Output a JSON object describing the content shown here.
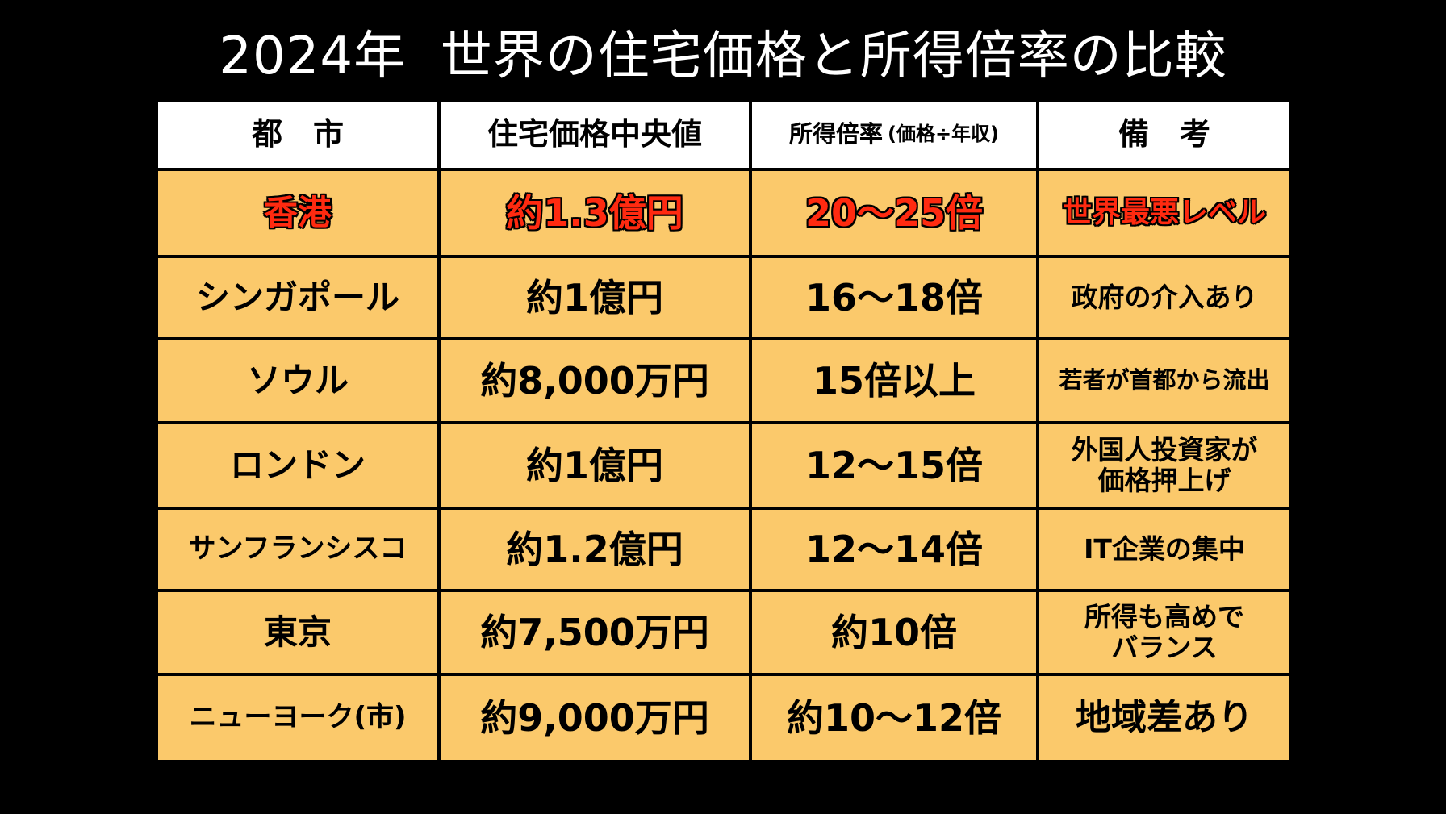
{
  "title": "2024年  世界の住宅価格と所得倍率の比較",
  "headers": {
    "city": "都　市",
    "price": "住宅価格中央値",
    "ratio": "所得倍率",
    "ratio_sub": "(価格÷年収)",
    "note": "備　考"
  },
  "rows": [
    {
      "city": "香港",
      "price": "約1.3億円",
      "ratio": "20〜25倍",
      "note": "世界最悪レベル"
    },
    {
      "city": "シンガポール",
      "price": "約1億円",
      "ratio": "16〜18倍",
      "note": "政府の介入あり"
    },
    {
      "city": "ソウル",
      "price": "約8,000万円",
      "ratio": "15倍以上",
      "note": "若者が首都から流出"
    },
    {
      "city": "ロンドン",
      "price": "約1億円",
      "ratio": "12〜15倍",
      "note": "外国人投資家が\n価格押上げ"
    },
    {
      "city": "サンフランシスコ",
      "price": "約1.2億円",
      "ratio": "12〜14倍",
      "note": "IT企業の集中"
    },
    {
      "city": "東京",
      "price": "約7,500万円",
      "ratio": "約10倍",
      "note": "所得も高めで\nバランス"
    },
    {
      "city": "ニューヨーク(市)",
      "price": "約9,000万円",
      "ratio": "約10〜12倍",
      "note": "地域差あり"
    }
  ],
  "colors": {
    "background": "#000000",
    "header_fill": "#ffffff",
    "row_fill": "#fbc96b",
    "highlight_text": "#ff2a10"
  }
}
